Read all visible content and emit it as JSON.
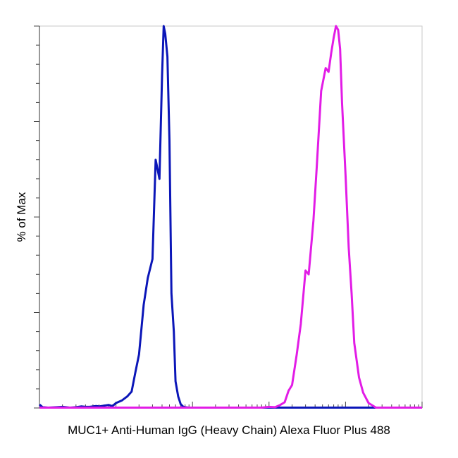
{
  "chart_data": {
    "type": "line",
    "title": "",
    "xlabel": "MUC1+ Anti-Human IgG (Heavy Chain) Alexa Fluor Plus 488",
    "ylabel": "% of Max",
    "x_scale": "log",
    "xlim": [
      10,
      1000000
    ],
    "ylim": [
      0,
      100
    ],
    "grid": false,
    "legend": "none",
    "series": [
      {
        "color": "#0b16b8",
        "x": [
          10,
          11,
          13,
          17,
          20,
          25,
          30,
          35,
          40,
          45,
          55,
          60,
          70,
          80,
          90,
          100,
          120,
          140,
          160,
          180,
          200,
          230,
          260,
          300,
          330,
          370,
          400,
          420,
          440,
          470,
          500,
          530,
          570,
          600,
          650,
          700,
          760,
          800,
          900,
          1000,
          1100,
          1200,
          1300,
          1500,
          2000,
          5000,
          20000,
          100000,
          1000000
        ],
        "y": [
          0.9,
          0.2,
          0.1,
          0.2,
          0.3,
          0.1,
          0.2,
          0.4,
          0.3,
          0.3,
          0.5,
          0.4,
          0.6,
          0.8,
          0.5,
          1.3,
          2.0,
          3.0,
          4.3,
          9.5,
          14.0,
          27.0,
          34.0,
          39.0,
          65.0,
          60.0,
          87.0,
          100.0,
          98.0,
          92.0,
          70.0,
          30.0,
          20.0,
          7.0,
          3.0,
          1.0,
          0.3,
          0.2,
          0.1,
          0.1,
          0.1,
          0.1,
          0.1,
          0.1,
          0.1,
          0.1,
          0.1,
          0.1,
          0.1
        ]
      },
      {
        "color": "#e21ce6",
        "x": [
          10,
          100,
          1000,
          8000,
          10000,
          12000,
          14000,
          16000,
          18000,
          20000,
          23000,
          26000,
          30000,
          33000,
          38000,
          42000,
          48000,
          55000,
          60000,
          65000,
          70000,
          75000,
          80000,
          85000,
          90000,
          100000,
          110000,
          120000,
          130000,
          150000,
          170000,
          200000,
          250000,
          300000,
          1000000
        ],
        "y": [
          0.1,
          0.1,
          0.1,
          0.1,
          0.3,
          0.2,
          0.8,
          1.5,
          4.5,
          6.0,
          14.0,
          22.0,
          36.0,
          35.0,
          49.0,
          63.0,
          83.0,
          89.0,
          88.0,
          93.0,
          97.0,
          100.0,
          99.0,
          94.0,
          80.0,
          61.0,
          42.0,
          30.0,
          17.0,
          8.0,
          4.0,
          1.3,
          0.1,
          0.1,
          0.1
        ]
      }
    ]
  }
}
